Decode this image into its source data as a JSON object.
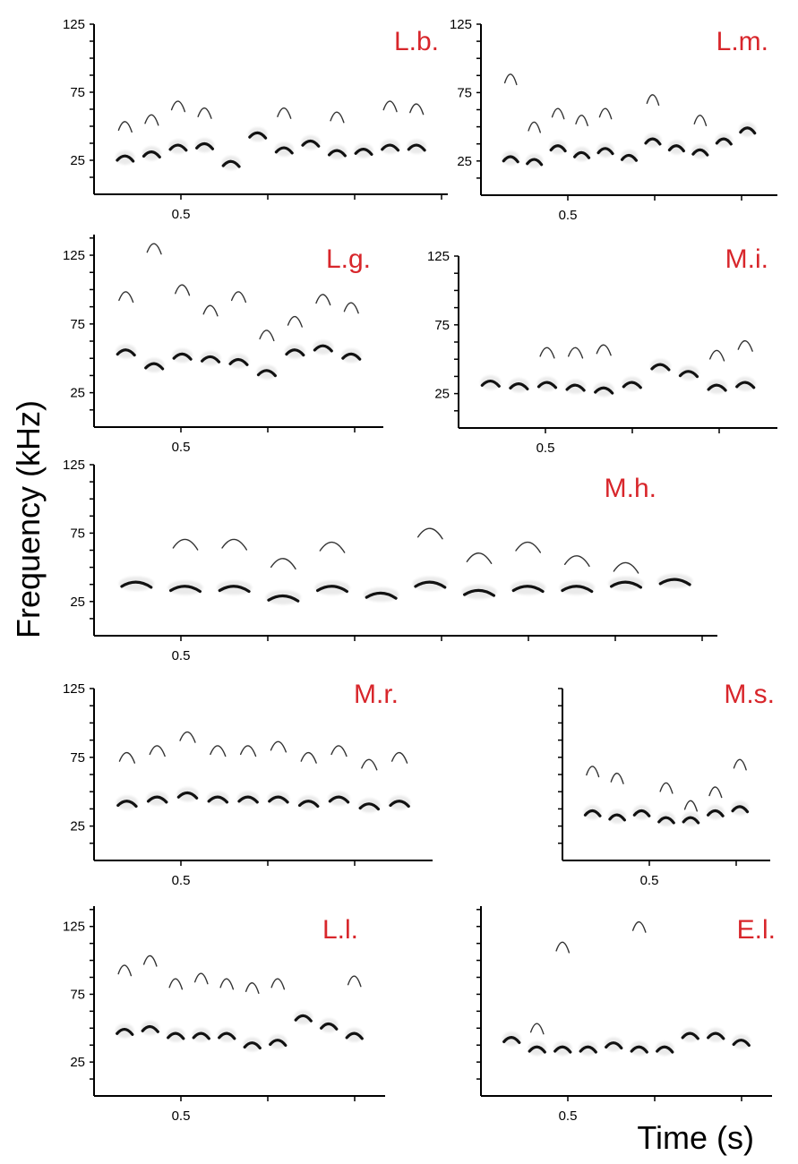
{
  "y_axis_title": "Frequency (kHz)",
  "x_axis_title": "Time (s)",
  "label_color": "#d8262b",
  "chart_data": [
    {
      "type": "spectrogram",
      "label": "L.b.",
      "yticks": [
        25,
        75,
        125
      ],
      "xticks": [
        0.5
      ],
      "ylim": [
        0,
        125
      ],
      "fundamental": [
        27,
        30,
        35,
        36,
        23,
        44,
        33,
        38,
        31,
        32,
        35,
        35
      ],
      "harmonic": [
        55,
        60,
        70,
        65,
        0,
        0,
        65,
        0,
        62,
        0,
        70,
        68
      ]
    },
    {
      "type": "spectrogram",
      "label": "L.m.",
      "yticks": [
        25,
        75,
        125
      ],
      "xticks": [
        0.5
      ],
      "ylim": [
        0,
        125
      ],
      "fundamental": [
        27,
        25,
        35,
        30,
        33,
        28,
        40,
        35,
        32,
        40,
        48
      ],
      "harmonic": [
        90,
        55,
        65,
        60,
        65,
        0,
        75,
        0,
        60,
        0,
        0
      ]
    },
    {
      "type": "spectrogram",
      "label": "L.g.",
      "yticks": [
        25,
        75,
        125
      ],
      "xticks": [
        0.5
      ],
      "ylim": [
        0,
        140
      ],
      "fundamental": [
        55,
        45,
        52,
        50,
        48,
        40,
        55,
        58,
        52
      ],
      "harmonic": [
        100,
        135,
        105,
        90,
        100,
        72,
        82,
        98,
        92
      ]
    },
    {
      "type": "spectrogram",
      "label": "M.i.",
      "yticks": [
        25,
        75,
        125
      ],
      "xticks": [
        0.5
      ],
      "ylim": [
        0,
        125
      ],
      "fundamental": [
        33,
        31,
        32,
        30,
        28,
        32,
        45,
        40,
        30,
        32
      ],
      "harmonic": [
        0,
        0,
        60,
        60,
        62,
        0,
        0,
        0,
        58,
        65
      ]
    },
    {
      "type": "spectrogram",
      "label": "M.h.",
      "yticks": [
        25,
        75,
        125
      ],
      "xticks": [
        0.5
      ],
      "ylim": [
        0,
        125
      ],
      "fundamental": [
        38,
        35,
        35,
        28,
        35,
        30,
        38,
        32,
        35,
        35,
        38,
        40
      ],
      "harmonic": [
        0,
        72,
        72,
        58,
        70,
        0,
        80,
        62,
        70,
        60,
        55,
        0
      ]
    },
    {
      "type": "spectrogram",
      "label": "M.r.",
      "yticks": [
        25,
        75,
        125
      ],
      "xticks": [
        0.5
      ],
      "ylim": [
        0,
        125
      ],
      "fundamental": [
        42,
        45,
        48,
        45,
        45,
        45,
        42,
        45,
        40,
        42
      ],
      "harmonic": [
        80,
        85,
        95,
        85,
        85,
        88,
        80,
        85,
        75,
        80
      ]
    },
    {
      "type": "spectrogram",
      "label": "M.s.",
      "yticks": [],
      "xticks": [
        0.5
      ],
      "ylim": [
        0,
        125
      ],
      "fundamental": [
        35,
        32,
        35,
        30,
        30,
        35,
        38
      ],
      "harmonic": [
        70,
        65,
        0,
        58,
        45,
        55,
        75
      ]
    },
    {
      "type": "spectrogram",
      "label": "L.l.",
      "yticks": [
        25,
        75,
        125
      ],
      "xticks": [
        0.5
      ],
      "ylim": [
        0,
        140
      ],
      "fundamental": [
        48,
        50,
        45,
        45,
        45,
        38,
        40,
        58,
        52,
        45
      ],
      "harmonic": [
        98,
        105,
        88,
        92,
        88,
        85,
        88,
        0,
        0,
        90
      ]
    },
    {
      "type": "spectrogram",
      "label": "E.l.",
      "yticks": [],
      "xticks": [
        0.5
      ],
      "ylim": [
        0,
        140
      ],
      "fundamental": [
        42,
        35,
        35,
        35,
        38,
        35,
        35,
        45,
        45,
        40
      ],
      "harmonic": [
        0,
        55,
        115,
        0,
        0,
        130,
        0,
        0,
        0,
        0
      ]
    }
  ]
}
